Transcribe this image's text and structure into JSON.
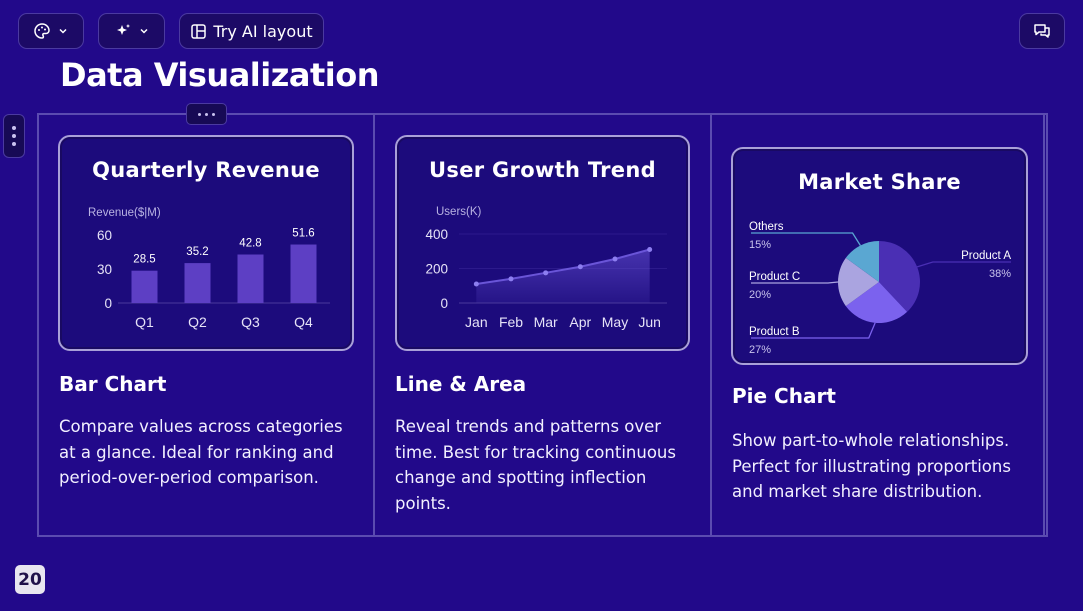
{
  "toolbar": {
    "theme_icon": "palette-icon",
    "ai_icon": "sparkles-icon",
    "ai_layout_label": "Try AI layout",
    "comments_icon": "chat-icon"
  },
  "page": {
    "title": "Data Visualization",
    "page_number": "20"
  },
  "columns": [
    {
      "heading": "Bar Chart",
      "description": "Compare values across categories at a glance. Ideal for ranking and period-over-period comparison."
    },
    {
      "heading": "Line & Area",
      "description": "Reveal trends and patterns over time. Best for tracking continuous change and spotting inflection points."
    },
    {
      "heading": "Pie Chart",
      "description": "Show part-to-whole relationships. Perfect for illustrating proportions and market share distribution."
    }
  ],
  "chart_data": [
    {
      "type": "bar",
      "title": "Quarterly Revenue",
      "ylabel": "Revenue($|M)",
      "categories": [
        "Q1",
        "Q2",
        "Q3",
        "Q4"
      ],
      "values": [
        28.5,
        35.2,
        42.8,
        51.6
      ],
      "data_labels": [
        "28.5",
        "35.2",
        "42.8",
        "51.6"
      ],
      "yticks": [
        "0",
        "30",
        "60"
      ],
      "ylim": [
        0,
        60
      ],
      "color": "#5d3fc4",
      "grid": false
    },
    {
      "type": "area",
      "title": "User Growth Trend",
      "ylabel": "Users(K)",
      "categories": [
        "Jan",
        "Feb",
        "Mar",
        "Apr",
        "May",
        "Jun"
      ],
      "values": [
        110,
        140,
        175,
        210,
        255,
        310
      ],
      "yticks": [
        "0",
        "200",
        "400"
      ],
      "ylim": [
        0,
        400
      ],
      "color": "#6a55d8",
      "grid": true
    },
    {
      "type": "pie",
      "title": "Market Share",
      "slices": [
        {
          "label": "Product A",
          "value": 38,
          "pct_label": "38%",
          "color": "#4a2fb4"
        },
        {
          "label": "Product B",
          "value": 27,
          "pct_label": "27%",
          "color": "#7b62ee"
        },
        {
          "label": "Product C",
          "value": 20,
          "pct_label": "20%",
          "color": "#aaa4e0"
        },
        {
          "label": "Others",
          "value": 15,
          "pct_label": "15%",
          "color": "#5aa7d2"
        }
      ]
    }
  ]
}
